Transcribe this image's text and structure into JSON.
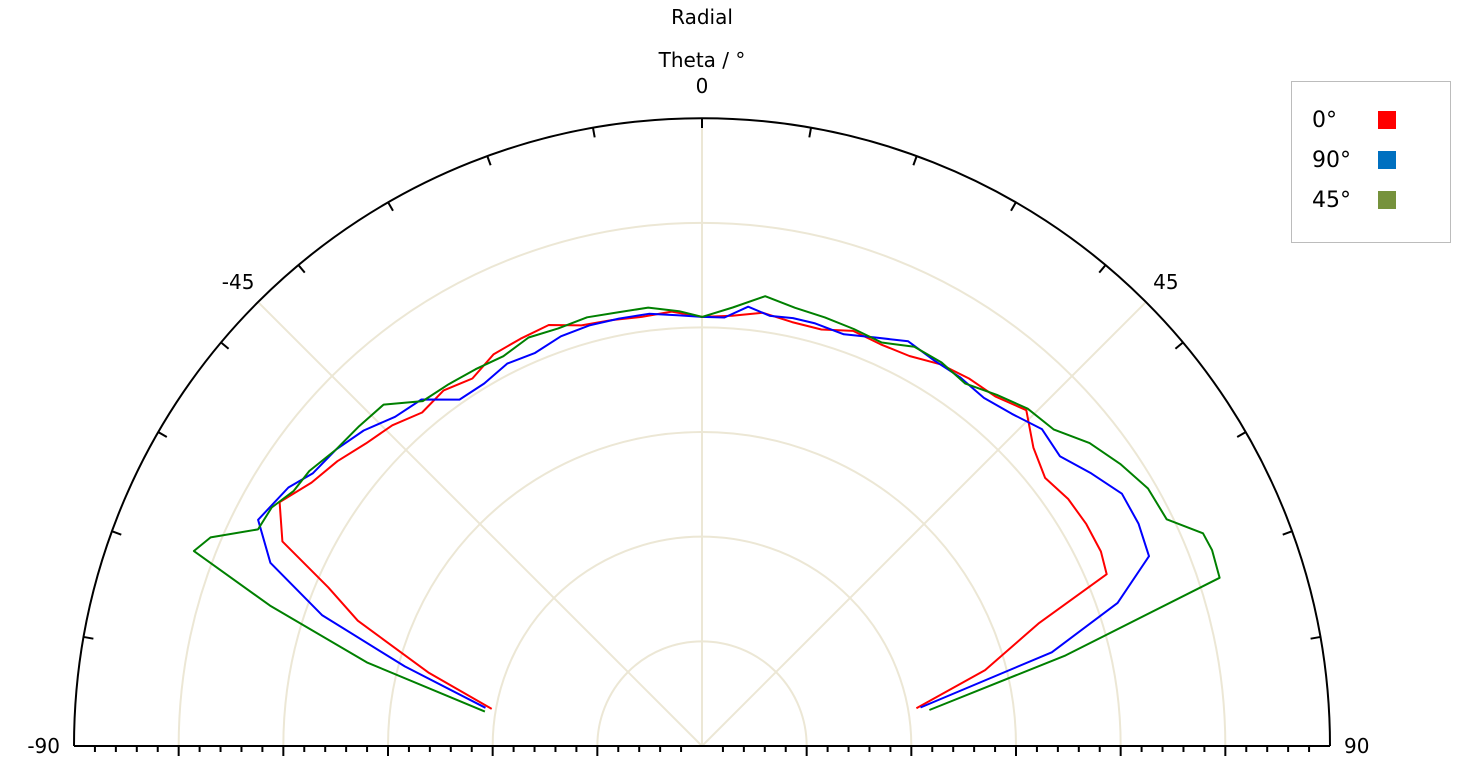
{
  "chart_data": {
    "type": "polar-line",
    "title": "Radial",
    "subtitle": "Theta / °",
    "theta_range": [
      -90,
      90
    ],
    "theta_tick_labels": [
      "-90",
      "-45",
      "0",
      "45",
      "90"
    ],
    "theta_ticks": [
      -90,
      -45,
      0,
      45,
      90
    ],
    "r_range": [
      0,
      3
    ],
    "r_grid": [
      0.5,
      1,
      1.5,
      2,
      2.5
    ],
    "grid": true,
    "legend_position": "top-right",
    "series": [
      {
        "name": "0°",
        "color": "#ff0000",
        "points": [
          [
            -80,
            1.02
          ],
          [
            -75,
            1.35
          ],
          [
            -70,
            1.75
          ],
          [
            -67,
            1.94
          ],
          [
            -64,
            2.23
          ],
          [
            -60,
            2.33
          ],
          [
            -56,
            2.25
          ],
          [
            -52,
            2.21
          ],
          [
            -48,
            2.16
          ],
          [
            -44,
            2.13
          ],
          [
            -40,
            2.08
          ],
          [
            -36,
            2.1
          ],
          [
            -32,
            2.07
          ],
          [
            -28,
            2.12
          ],
          [
            -24,
            2.13
          ],
          [
            -20,
            2.14
          ],
          [
            -16,
            2.09
          ],
          [
            -12,
            2.08
          ],
          [
            -8,
            2.07
          ],
          [
            -4,
            2.08
          ],
          [
            0,
            2.05
          ],
          [
            4,
            2.06
          ],
          [
            8,
            2.09
          ],
          [
            12,
            2.07
          ],
          [
            16,
            2.07
          ],
          [
            20,
            2.11
          ],
          [
            24,
            2.1
          ],
          [
            28,
            2.11
          ],
          [
            32,
            2.15
          ],
          [
            36,
            2.17
          ],
          [
            40,
            2.18
          ],
          [
            44,
            2.23
          ],
          [
            48,
            2.13
          ],
          [
            52,
            2.08
          ],
          [
            56,
            2.11
          ],
          [
            60,
            2.12
          ],
          [
            64,
            2.12
          ],
          [
            67,
            2.1
          ],
          [
            70,
            1.71
          ],
          [
            75,
            1.4
          ],
          [
            80,
            1.04
          ]
        ]
      },
      {
        "name": "90°",
        "color": "#0000ff",
        "points": [
          [
            -80,
            1.05
          ],
          [
            -75,
            1.47
          ],
          [
            -71,
            1.92
          ],
          [
            -67,
            2.24
          ],
          [
            -63,
            2.38
          ],
          [
            -58,
            2.33
          ],
          [
            -55,
            2.27
          ],
          [
            -51,
            2.25
          ],
          [
            -47,
            2.21
          ],
          [
            -43,
            2.15
          ],
          [
            -39,
            2.13
          ],
          [
            -35,
            2.02
          ],
          [
            -31,
            2.02
          ],
          [
            -27,
            2.05
          ],
          [
            -23,
            2.04
          ],
          [
            -19,
            2.07
          ],
          [
            -15,
            2.08
          ],
          [
            -11,
            2.08
          ],
          [
            -7,
            2.08
          ],
          [
            -3,
            2.06
          ],
          [
            0,
            2.05
          ],
          [
            3,
            2.05
          ],
          [
            6,
            2.11
          ],
          [
            9,
            2.08
          ],
          [
            12,
            2.09
          ],
          [
            15,
            2.09
          ],
          [
            19,
            2.08
          ],
          [
            23,
            2.12
          ],
          [
            27,
            2.17
          ],
          [
            31,
            2.15
          ],
          [
            35,
            2.15
          ],
          [
            39,
            2.14
          ],
          [
            43,
            2.17
          ],
          [
            47,
            2.22
          ],
          [
            51,
            2.2
          ],
          [
            55,
            2.27
          ],
          [
            59,
            2.34
          ],
          [
            63,
            2.34
          ],
          [
            67,
            2.32
          ],
          [
            71,
            2.1
          ],
          [
            75,
            1.73
          ],
          [
            80,
            1.06
          ]
        ]
      },
      {
        "name": "45°",
        "color": "#008000",
        "points": [
          [
            -81,
            1.05
          ],
          [
            -76,
            1.65
          ],
          [
            -72,
            2.17
          ],
          [
            -69,
            2.6
          ],
          [
            -67,
            2.55
          ],
          [
            -64,
            2.36
          ],
          [
            -61,
            2.35
          ],
          [
            -58,
            2.3
          ],
          [
            -55,
            2.29
          ],
          [
            -51,
            2.25
          ],
          [
            -47,
            2.24
          ],
          [
            -43,
            2.23
          ],
          [
            -39,
            2.12
          ],
          [
            -35,
            2.11
          ],
          [
            -31,
            2.1
          ],
          [
            -27,
            2.09
          ],
          [
            -23,
            2.12
          ],
          [
            -19,
            2.11
          ],
          [
            -15,
            2.12
          ],
          [
            -11,
            2.11
          ],
          [
            -7,
            2.11
          ],
          [
            -3,
            2.08
          ],
          [
            0,
            2.05
          ],
          [
            4,
            2.1
          ],
          [
            8,
            2.17
          ],
          [
            12,
            2.14
          ],
          [
            16,
            2.13
          ],
          [
            20,
            2.12
          ],
          [
            24,
            2.11
          ],
          [
            28,
            2.16
          ],
          [
            32,
            2.16
          ],
          [
            36,
            2.14
          ],
          [
            40,
            2.19
          ],
          [
            44,
            2.24
          ],
          [
            48,
            2.26
          ],
          [
            52,
            2.35
          ],
          [
            56,
            2.41
          ],
          [
            60,
            2.46
          ],
          [
            64,
            2.47
          ],
          [
            67,
            2.6
          ],
          [
            69,
            2.61
          ],
          [
            72,
            2.6
          ],
          [
            76,
            1.79
          ],
          [
            81,
            1.1
          ]
        ]
      }
    ]
  }
}
